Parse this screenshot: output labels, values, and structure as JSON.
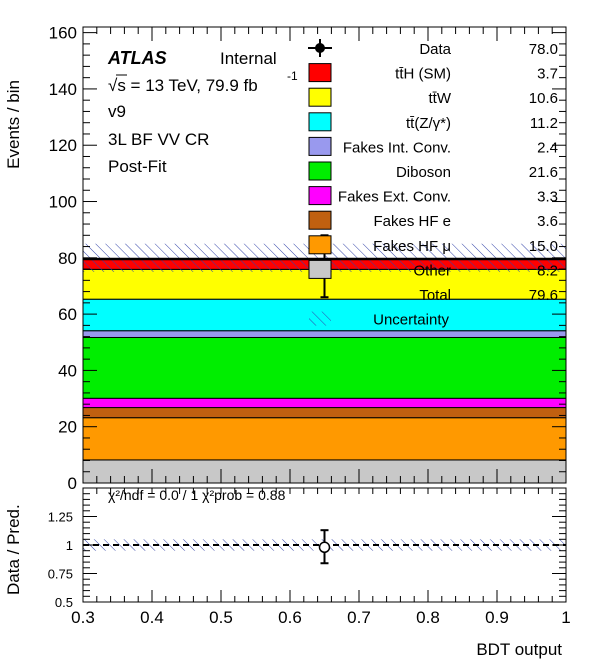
{
  "chart_data": [
    {
      "type": "bar",
      "panel": "main",
      "ylabel": "Events / bin",
      "ylim": [
        0,
        162
      ],
      "xlim": [
        0.3,
        1.0
      ],
      "y_ticks": [
        "0",
        "20",
        "40",
        "60",
        "80",
        "100",
        "120",
        "140",
        "160"
      ],
      "x_bin": [
        0.3,
        1.0
      ],
      "atlas_label": "ATLAS",
      "atlas_status": "Internal",
      "energy_label": "√s = 13 TeV, 79.9 fb",
      "energy_exponent": "-1",
      "info_lines": [
        "v9",
        "3L BF VV CR",
        "Post-Fit"
      ],
      "stack": [
        {
          "name": "Other",
          "value": 8.2,
          "color": "#c8c8c8"
        },
        {
          "name": "Fakes HF μ",
          "value": 15.0,
          "color": "#ff9900"
        },
        {
          "name": "Fakes HF e",
          "value": 3.6,
          "color": "#c06010"
        },
        {
          "name": "Fakes Ext. Conv.",
          "value": 3.3,
          "color": "#ff00ff"
        },
        {
          "name": "Diboson",
          "value": 21.6,
          "color": "#00ee00"
        },
        {
          "name": "Fakes Int. Conv.",
          "value": 2.4,
          "color": "#9999ee"
        },
        {
          "name": "tt̄(Z/γ*)",
          "value": 11.2,
          "color": "#00ffff"
        },
        {
          "name": "tt̄W",
          "value": 10.6,
          "color": "#ffff00"
        },
        {
          "name": "tt̄H (SM)",
          "value": 3.7,
          "color": "#ff0000"
        }
      ],
      "total": 79.6,
      "uncertainty": [
        75.0,
        85.0
      ],
      "data_point": {
        "x": 0.65,
        "y": 78.0,
        "err": [
          66.0,
          88.0
        ]
      },
      "legend": [
        {
          "kind": "data",
          "label": "Data",
          "value": "78.0"
        },
        {
          "kind": "box",
          "label": "tt̄H (SM)",
          "value": "3.7",
          "color": "#ff0000"
        },
        {
          "kind": "box",
          "label": "tt̄W",
          "value": "10.6",
          "color": "#ffff00"
        },
        {
          "kind": "box",
          "label": "tt̄(Z/γ*)",
          "value": "11.2",
          "color": "#00ffff"
        },
        {
          "kind": "box",
          "label": "Fakes Int. Conv.",
          "value": "2.4",
          "color": "#9999ee"
        },
        {
          "kind": "box",
          "label": "Diboson",
          "value": "21.6",
          "color": "#00ee00"
        },
        {
          "kind": "box",
          "label": "Fakes Ext. Conv.",
          "value": "3.3",
          "color": "#ff00ff"
        },
        {
          "kind": "box",
          "label": "Fakes HF e",
          "value": "3.6",
          "color": "#c06010"
        },
        {
          "kind": "box",
          "label": "Fakes HF μ",
          "value": "15.0",
          "color": "#ff9900"
        },
        {
          "kind": "box",
          "label": "Other",
          "value": "8.2",
          "color": "#c8c8c8"
        },
        {
          "kind": "none",
          "label": "Total",
          "value": "79.6"
        },
        {
          "kind": "hatch",
          "label": "Uncertainty",
          "value": ""
        }
      ]
    },
    {
      "type": "scatter",
      "panel": "ratio",
      "ylabel": "Data / Pred.",
      "xlabel": "BDT output",
      "ylim": [
        0.5,
        1.5
      ],
      "xlim": [
        0.3,
        1.0
      ],
      "y_ticks": [
        "0.5",
        "0.75",
        "1",
        "1.25"
      ],
      "x_ticks": [
        "0.3",
        "0.4",
        "0.5",
        "0.6",
        "0.7",
        "0.8",
        "0.9",
        "1"
      ],
      "chi2_text": "χ²/ndf = 0.0 / 1   χ²prob = 0.88",
      "ratio_band": [
        0.985,
        1.015
      ],
      "point": {
        "x": 0.65,
        "y": 0.98,
        "err": [
          0.84,
          1.13
        ]
      }
    }
  ]
}
